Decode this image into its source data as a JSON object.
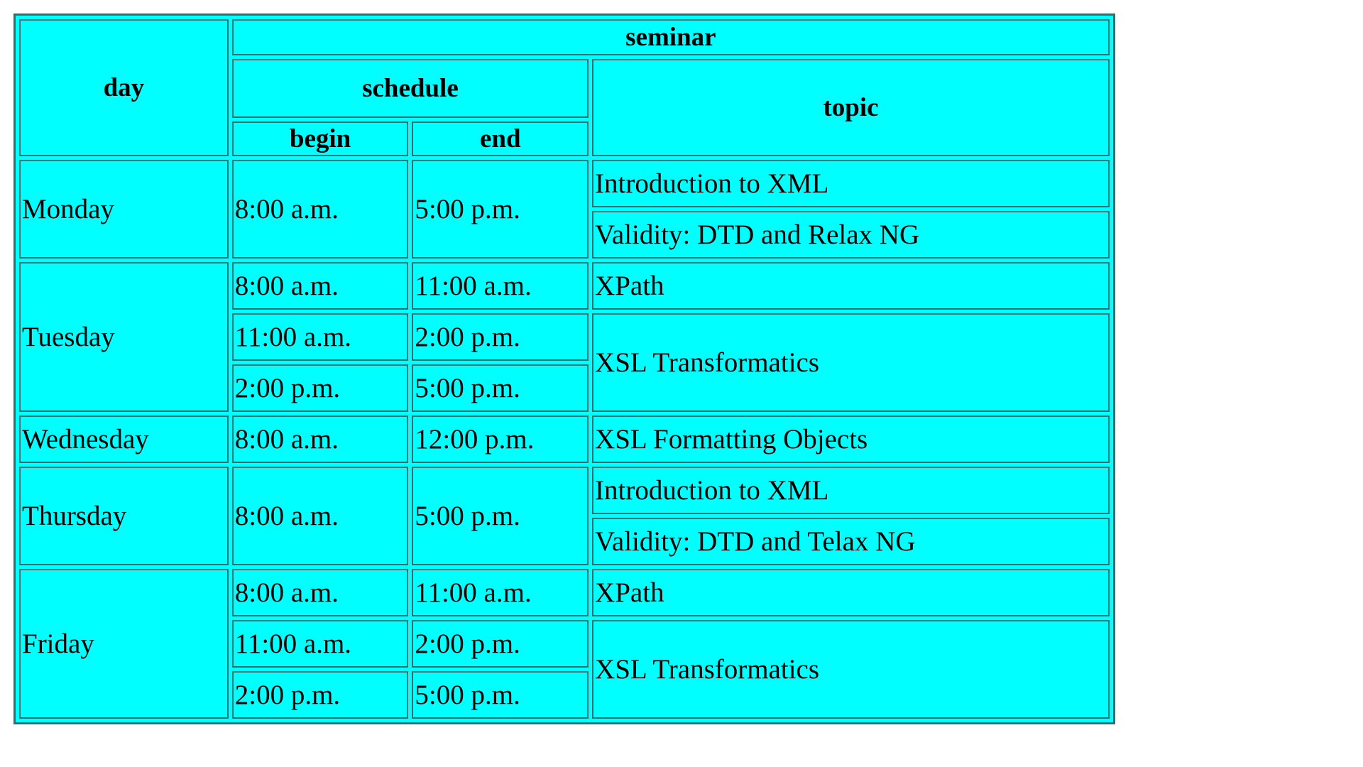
{
  "header": {
    "day": "day",
    "seminar": "seminar",
    "schedule": "schedule",
    "topic": "topic",
    "begin": "begin",
    "end": "end"
  },
  "colors": {
    "cell_background": "#00ffff",
    "morning": "#ffa500",
    "afternoon": "#008000",
    "evening": "#0000ff"
  },
  "rows": {
    "monday": {
      "day": "Monday",
      "begin": "8:00 a.m.",
      "end": "5:00 p.m.",
      "topic_1": "Introduction to XML",
      "topic_2": "Validity: DTD and Relax NG"
    },
    "tuesday": {
      "day": "Tuesday",
      "slot_1_begin": "8:00 a.m.",
      "slot_1_end": "11:00 a.m.",
      "slot_1_topic": "XPath",
      "slot_2_begin": "11:00 a.m.",
      "slot_2_end": "2:00 p.m.",
      "slot_3_begin": "2:00 p.m.",
      "slot_3_end": "5:00 p.m.",
      "slot_23_topic": "XSL Transformatics"
    },
    "wednesday": {
      "day": "Wednesday",
      "begin": "8:00 a.m.",
      "end": "12:00 p.m.",
      "topic": "XSL Formatting Objects"
    },
    "thursday": {
      "day": "Thursday",
      "begin": "8:00 a.m.",
      "end": "5:00 p.m.",
      "topic_1": "Introduction to XML",
      "topic_2": "Validity: DTD and Telax NG"
    },
    "friday": {
      "day": "Friday",
      "slot_1_begin": "8:00 a.m.",
      "slot_1_end": "11:00 a.m.",
      "slot_1_topic": "XPath",
      "slot_2_begin": "11:00 a.m.",
      "slot_2_end": "2:00 p.m.",
      "slot_3_begin": "2:00 p.m.",
      "slot_3_end": "5:00 p.m.",
      "slot_23_topic": "XSL Transformatics"
    }
  }
}
